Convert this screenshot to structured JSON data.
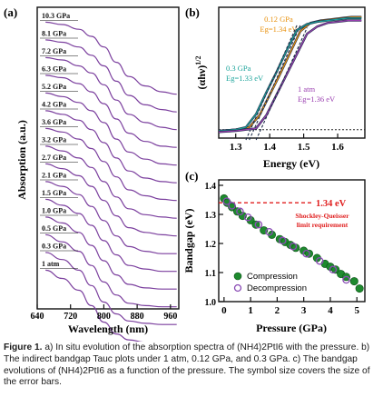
{
  "figure": {
    "caption_label": "Figure 1.",
    "caption_text": "a) In situ evolution of the absorption spectra of (NH4)2PtI6 with the pressure. b) The indirect bandgap Tauc plots under 1 atm, 0.12 GPa, and 0.3 GPa. c) The bandgap evolutions of (NH4)2PtI6 as a function of the pressure. The symbol size covers the size of the error bars."
  },
  "chart_data": [
    {
      "panel": "(a)",
      "type": "line",
      "xlabel": "Wavelength (nm)",
      "ylabel": "Absorption (a.u.)",
      "xlim": [
        640,
        980
      ],
      "xticks": [
        640,
        720,
        800,
        880,
        960
      ],
      "yticks": [],
      "grid": false,
      "line_color": "#7b3f9e",
      "series": [
        {
          "name": "10.3 GPa",
          "values": [
            0.92,
            0.9,
            0.86,
            0.8,
            0.71,
            0.58,
            0.46,
            0.38,
            0.33,
            0.31
          ]
        },
        {
          "name": "8.1 GPa",
          "values": [
            0.92,
            0.9,
            0.86,
            0.79,
            0.7,
            0.57,
            0.45,
            0.37,
            0.33,
            0.31
          ]
        },
        {
          "name": "7.2 GPa",
          "values": [
            0.92,
            0.9,
            0.85,
            0.79,
            0.69,
            0.56,
            0.44,
            0.37,
            0.33,
            0.31
          ]
        },
        {
          "name": "6.3 GPa",
          "values": [
            0.92,
            0.9,
            0.85,
            0.78,
            0.68,
            0.55,
            0.43,
            0.36,
            0.32,
            0.31
          ]
        },
        {
          "name": "5.2 GPa",
          "values": [
            0.92,
            0.89,
            0.84,
            0.77,
            0.67,
            0.53,
            0.42,
            0.36,
            0.32,
            0.31
          ]
        },
        {
          "name": "4.2 GPa",
          "values": [
            0.92,
            0.89,
            0.84,
            0.76,
            0.65,
            0.52,
            0.41,
            0.35,
            0.32,
            0.31
          ]
        },
        {
          "name": "3.6 GPa",
          "values": [
            0.92,
            0.89,
            0.83,
            0.75,
            0.64,
            0.51,
            0.4,
            0.35,
            0.32,
            0.31
          ]
        },
        {
          "name": "3.2 GPa",
          "values": [
            0.92,
            0.88,
            0.82,
            0.74,
            0.62,
            0.49,
            0.39,
            0.34,
            0.32,
            0.31
          ]
        },
        {
          "name": "2.7 GPa",
          "values": [
            0.92,
            0.88,
            0.82,
            0.73,
            0.61,
            0.48,
            0.38,
            0.34,
            0.32,
            0.31
          ]
        },
        {
          "name": "2.1 GPa",
          "values": [
            0.92,
            0.88,
            0.81,
            0.71,
            0.59,
            0.46,
            0.37,
            0.33,
            0.31,
            0.31
          ]
        },
        {
          "name": "1.5 GPa",
          "values": [
            0.92,
            0.87,
            0.8,
            0.7,
            0.57,
            0.45,
            0.36,
            0.33,
            0.31,
            0.31
          ]
        },
        {
          "name": "1.0 GPa",
          "values": [
            0.92,
            0.87,
            0.79,
            0.68,
            0.55,
            0.43,
            0.35,
            0.32,
            0.31,
            0.31
          ]
        },
        {
          "name": "0.5 GPa",
          "values": [
            0.92,
            0.86,
            0.78,
            0.66,
            0.52,
            0.41,
            0.34,
            0.32,
            0.31,
            0.31
          ]
        },
        {
          "name": "0.3 GPa",
          "values": [
            0.92,
            0.86,
            0.77,
            0.64,
            0.5,
            0.4,
            0.34,
            0.32,
            0.31,
            0.31
          ]
        },
        {
          "name": "1 atm",
          "values": [
            0.92,
            0.85,
            0.75,
            0.62,
            0.48,
            0.38,
            0.33,
            0.31,
            0.31,
            0.31
          ]
        }
      ],
      "x": [
        660,
        700,
        740,
        770,
        800,
        830,
        860,
        900,
        940,
        975
      ]
    },
    {
      "panel": "(b)",
      "type": "line",
      "xlabel": "Energy (eV)",
      "ylabel": "(αhν)^1/2",
      "xlim": [
        1.25,
        1.68
      ],
      "xticks": [
        1.3,
        1.4,
        1.5,
        1.6
      ],
      "ylim": [
        0,
        1
      ],
      "grid": false,
      "series": [
        {
          "name": "0.12 GPa",
          "color": "#e8900c",
          "annotation": "Eg=1.34 eV",
          "fit_x": [
            1.34,
            1.49
          ],
          "fit_y": [
            0.0,
            0.88
          ],
          "x": [
            1.25,
            1.3,
            1.34,
            1.37,
            1.4,
            1.43,
            1.46,
            1.49,
            1.52,
            1.55,
            1.58,
            1.61,
            1.64,
            1.67
          ],
          "values": [
            0.03,
            0.04,
            0.06,
            0.16,
            0.33,
            0.5,
            0.68,
            0.86,
            0.93,
            0.95,
            0.96,
            0.97,
            0.98,
            0.98
          ]
        },
        {
          "name": "0.3 GPa",
          "color": "#1aa39a",
          "annotation": "Eg=1.33 eV",
          "fit_x": [
            1.33,
            1.48
          ],
          "fit_y": [
            0.0,
            0.88
          ],
          "x": [
            1.25,
            1.3,
            1.33,
            1.36,
            1.39,
            1.42,
            1.45,
            1.48,
            1.51,
            1.54,
            1.57,
            1.6,
            1.63,
            1.67
          ],
          "values": [
            0.03,
            0.04,
            0.06,
            0.17,
            0.35,
            0.52,
            0.7,
            0.87,
            0.92,
            0.94,
            0.95,
            0.96,
            0.97,
            0.97
          ]
        },
        {
          "name": "1 atm",
          "color": "#9a3fb0",
          "annotation": "Eg=1.36 eV",
          "fit_x": [
            1.36,
            1.51
          ],
          "fit_y": [
            0.0,
            0.86
          ],
          "x": [
            1.25,
            1.3,
            1.36,
            1.39,
            1.42,
            1.45,
            1.48,
            1.51,
            1.54,
            1.57,
            1.6,
            1.63,
            1.67
          ],
          "values": [
            0.02,
            0.03,
            0.05,
            0.16,
            0.33,
            0.5,
            0.67,
            0.84,
            0.9,
            0.93,
            0.94,
            0.95,
            0.95
          ]
        }
      ],
      "dark_line_color": "#1f2d4a",
      "baseline_dotted_y": 0.04
    },
    {
      "panel": "(c)",
      "type": "scatter",
      "xlabel": "Pressure (GPa)",
      "ylabel": "Bandgap (eV)",
      "xlim": [
        -0.2,
        5.3
      ],
      "ylim": [
        1.0,
        1.4
      ],
      "xticks": [
        0,
        1,
        2,
        3,
        4,
        5
      ],
      "yticks": [
        1.0,
        1.1,
        1.2,
        1.3,
        1.4
      ],
      "grid": false,
      "legend": "bottom-right",
      "reference_line": {
        "y": 1.34,
        "label": "1.34 eV",
        "note_line1": "Shockley-Queisser",
        "note_line2": "limit requirement",
        "color": "#e01e1e"
      },
      "series": [
        {
          "name": "Compression",
          "color": "#1e8a2e",
          "x": [
            0.0,
            0.12,
            0.3,
            0.5,
            0.7,
            1.0,
            1.2,
            1.5,
            1.8,
            2.1,
            2.3,
            2.5,
            2.7,
            3.0,
            3.2,
            3.5,
            3.8,
            4.0,
            4.2,
            4.4,
            4.6,
            4.9,
            5.1
          ],
          "values": [
            1.355,
            1.34,
            1.325,
            1.31,
            1.295,
            1.28,
            1.265,
            1.245,
            1.23,
            1.215,
            1.205,
            1.195,
            1.185,
            1.175,
            1.165,
            1.15,
            1.13,
            1.12,
            1.11,
            1.095,
            1.085,
            1.07,
            1.045
          ]
        },
        {
          "name": "Decompression",
          "color": "#8a4bb5",
          "x": [
            0.1,
            0.3,
            0.6,
            0.9,
            1.3,
            1.7,
            2.2,
            2.6,
            3.1,
            3.6,
            4.1,
            4.6
          ],
          "values": [
            1.345,
            1.33,
            1.31,
            1.29,
            1.265,
            1.24,
            1.21,
            1.19,
            1.165,
            1.14,
            1.11,
            1.075
          ]
        }
      ]
    }
  ]
}
